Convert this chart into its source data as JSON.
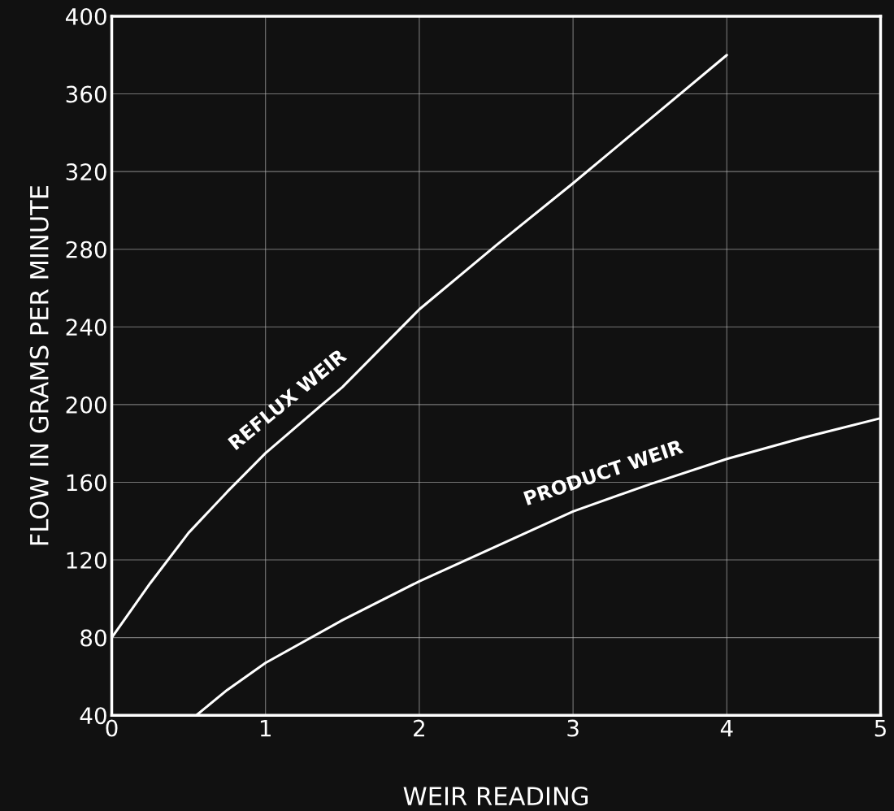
{
  "chart_data": {
    "type": "line",
    "xlabel": "WEIR READING",
    "ylabel": "FLOW IN GRAMS PER MINUTE",
    "xlim": [
      0,
      5
    ],
    "ylim": [
      40,
      400
    ],
    "xticks": [
      0,
      1,
      2,
      3,
      4,
      5
    ],
    "yticks": [
      40,
      80,
      120,
      160,
      200,
      240,
      280,
      320,
      360,
      400
    ],
    "grid": true,
    "marker": "none",
    "line_style": "solid",
    "series": [
      {
        "name": "REFLUX WEIR",
        "color": "#ffffff",
        "x": [
          0,
          0.25,
          0.5,
          0.75,
          1,
          1.5,
          2,
          2.5,
          3,
          3.5,
          4
        ],
        "values": [
          80,
          108,
          134,
          155,
          175,
          209,
          249,
          282,
          314,
          347,
          380
        ]
      },
      {
        "name": "PRODUCT WEIR",
        "color": "#ffffff",
        "x": [
          0.55,
          0.75,
          1,
          1.5,
          2,
          2.5,
          3,
          3.5,
          4,
          4.5,
          5
        ],
        "values": [
          40,
          53,
          67,
          89,
          109,
          127,
          145,
          159,
          172,
          183,
          193
        ]
      }
    ]
  }
}
